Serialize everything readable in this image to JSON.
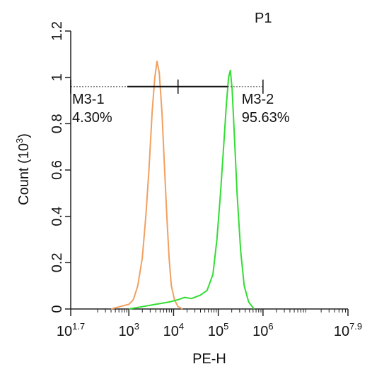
{
  "chart_data": {
    "type": "line",
    "title": "P1",
    "title_color": "#33dd33",
    "xlabel": "PE-H",
    "ylabel": "Count",
    "ylabel_unit_base": "10",
    "ylabel_unit_exp": "3",
    "x_scale": "log",
    "xlim_exp": [
      1.7,
      7.9
    ],
    "ylim": [
      0,
      1.2
    ],
    "x_ticks": [
      {
        "base": "10",
        "exp": "1.7",
        "value_exp": 1.7
      },
      {
        "base": "10",
        "exp": "3",
        "value_exp": 3
      },
      {
        "base": "10",
        "exp": "4",
        "value_exp": 4
      },
      {
        "base": "10",
        "exp": "5",
        "value_exp": 5
      },
      {
        "base": "10",
        "exp": "6",
        "value_exp": 6
      },
      {
        "base": "10",
        "exp": "7.9",
        "value_exp": 7.9
      }
    ],
    "y_ticks": [
      "0",
      "0.2",
      "0.4",
      "0.6",
      "0.8",
      "1",
      "1.2"
    ],
    "y_tick_values": [
      0,
      0.2,
      0.4,
      0.6,
      0.8,
      1.0,
      1.2
    ],
    "series": [
      {
        "color": "#f0a060",
        "points": [
          [
            2.6,
            0.0
          ],
          [
            2.8,
            0.01
          ],
          [
            3.0,
            0.02
          ],
          [
            3.1,
            0.04
          ],
          [
            3.2,
            0.1
          ],
          [
            3.3,
            0.22
          ],
          [
            3.38,
            0.4
          ],
          [
            3.45,
            0.6
          ],
          [
            3.52,
            0.85
          ],
          [
            3.58,
            1.0
          ],
          [
            3.63,
            1.07
          ],
          [
            3.68,
            1.02
          ],
          [
            3.74,
            0.85
          ],
          [
            3.8,
            0.6
          ],
          [
            3.85,
            0.4
          ],
          [
            3.9,
            0.22
          ],
          [
            3.95,
            0.1
          ],
          [
            4.02,
            0.04
          ],
          [
            4.1,
            0.01
          ],
          [
            4.2,
            0.0
          ]
        ]
      },
      {
        "color": "#33dd33",
        "points": [
          [
            3.0,
            0.0
          ],
          [
            3.3,
            0.01
          ],
          [
            3.6,
            0.02
          ],
          [
            3.9,
            0.03
          ],
          [
            4.1,
            0.04
          ],
          [
            4.25,
            0.05
          ],
          [
            4.4,
            0.045
          ],
          [
            4.6,
            0.06
          ],
          [
            4.75,
            0.08
          ],
          [
            4.88,
            0.15
          ],
          [
            4.97,
            0.3
          ],
          [
            5.05,
            0.5
          ],
          [
            5.12,
            0.7
          ],
          [
            5.18,
            0.88
          ],
          [
            5.23,
            1.0
          ],
          [
            5.27,
            1.03
          ],
          [
            5.31,
            0.95
          ],
          [
            5.36,
            0.75
          ],
          [
            5.42,
            0.5
          ],
          [
            5.5,
            0.25
          ],
          [
            5.58,
            0.1
          ],
          [
            5.68,
            0.03
          ],
          [
            5.8,
            0.0
          ]
        ]
      }
    ],
    "markers": [
      {
        "name": "M3-1",
        "percent": "4.30%",
        "x_from_exp": 1.7,
        "x_to_exp": 4.1,
        "y": 0.96
      },
      {
        "name": "M3-2",
        "percent": "95.63%",
        "x_from_exp": 4.1,
        "x_to_exp": 6.0,
        "y": 0.96
      }
    ]
  }
}
